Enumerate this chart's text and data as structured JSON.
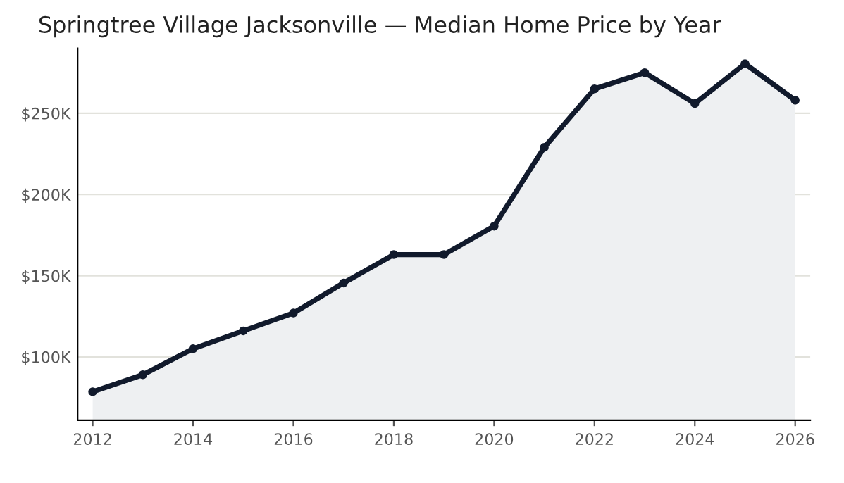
{
  "chart_data": {
    "type": "area",
    "title": "Springtree Village Jacksonville — Median Home Price by Year",
    "x": [
      2012,
      2013,
      2014,
      2015,
      2016,
      2017,
      2018,
      2019,
      2020,
      2021,
      2022,
      2023,
      2024,
      2025,
      2026
    ],
    "series": [
      {
        "color": "#111a2c",
        "values": [
          78.5,
          89,
          105,
          116,
          127,
          145.5,
          163,
          163,
          180.5,
          229,
          265,
          275,
          256,
          280.5,
          258
        ]
      }
    ],
    "xlim": [
      2011.7,
      2026.3
    ],
    "xticks": [
      2012,
      2014,
      2016,
      2018,
      2020,
      2022,
      2024,
      2026
    ],
    "ylim": [
      61,
      290
    ],
    "yticks": [
      {
        "value": 100,
        "label": "$100K"
      },
      {
        "value": 150,
        "label": "$150K"
      },
      {
        "value": 200,
        "label": "$200K"
      },
      {
        "value": 250,
        "label": "$250K"
      }
    ],
    "grid": "y",
    "marker": "circle",
    "line_style": "solid"
  }
}
